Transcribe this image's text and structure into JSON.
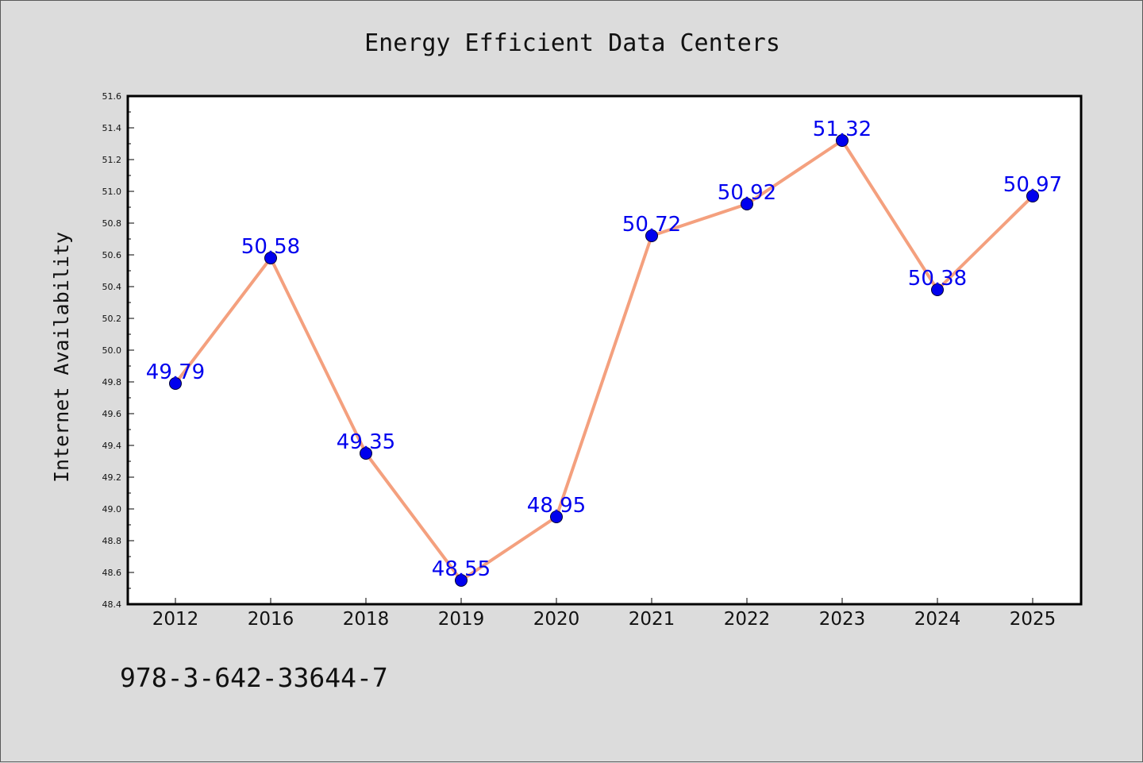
{
  "chart_data": {
    "type": "line",
    "title": "Energy Efficient Data Centers",
    "xlabel": "",
    "ylabel": "Internet Availability",
    "categories": [
      "2012",
      "2016",
      "2018",
      "2019",
      "2020",
      "2021",
      "2022",
      "2023",
      "2024",
      "2025"
    ],
    "series": [
      {
        "values": [
          49.79,
          50.58,
          49.35,
          48.55,
          48.95,
          50.72,
          50.92,
          51.32,
          50.38,
          50.97
        ]
      }
    ],
    "data_labels": [
      "49.79",
      "50.58",
      "49.35",
      "48.55",
      "48.95",
      "50.72",
      "50.92",
      "51.32",
      "50.38",
      "50.97"
    ],
    "ylim": [
      48.4,
      51.6
    ],
    "yticks": [
      "48.4",
      "48.6",
      "48.8",
      "49.0",
      "49.2",
      "49.4",
      "49.6",
      "49.8",
      "50.0",
      "50.2",
      "50.4",
      "50.6",
      "50.8",
      "51.0",
      "51.2",
      "51.4",
      "51.6"
    ],
    "grid": false,
    "legend": "none",
    "colors": {
      "line": "#f4a07e",
      "marker": "#0000ee",
      "label": "#0000ee",
      "background": "#dcdcdc",
      "plot_background": "#ffffff"
    }
  },
  "footer": {
    "isbn": "978-3-642-33644-7"
  }
}
